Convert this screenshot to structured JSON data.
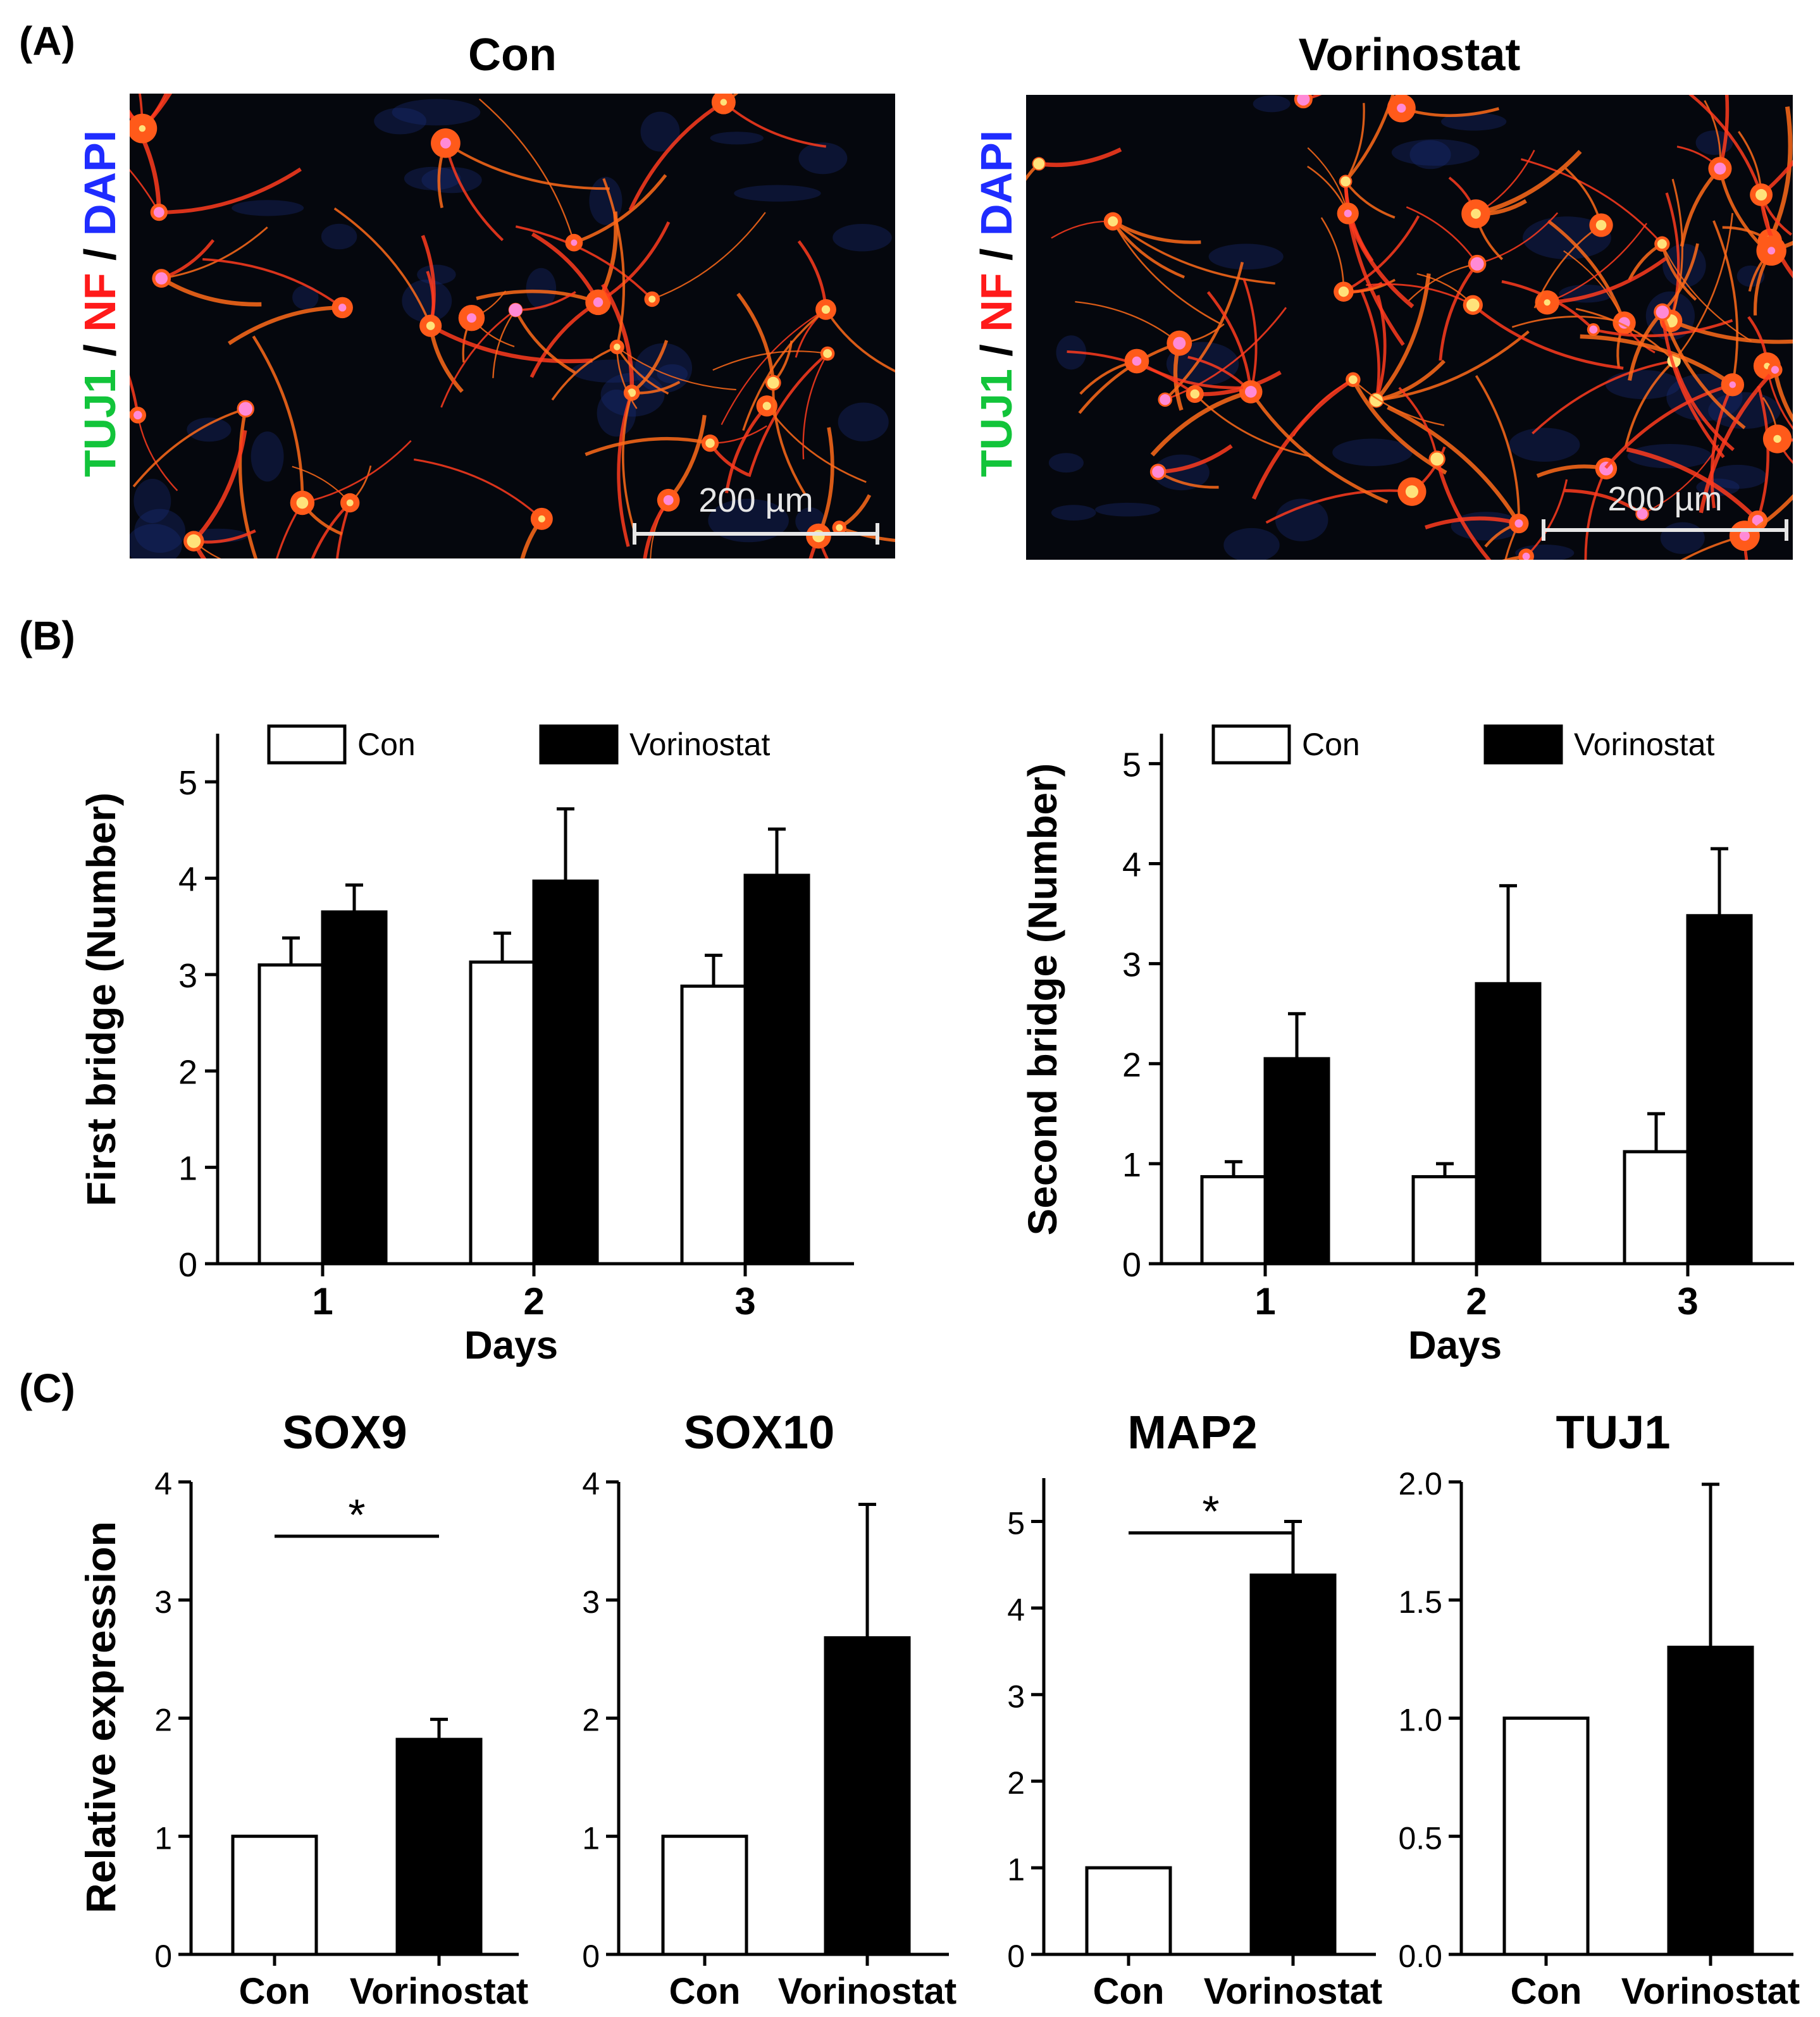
{
  "panels": {
    "a": "(A)",
    "b": "(B)",
    "c": "(C)"
  },
  "micrographs": [
    {
      "title": "Con",
      "stain": [
        "TUJ1",
        "NF",
        "DAPI"
      ],
      "stain_sep": " / ",
      "scale_label": "200 µm"
    },
    {
      "title": "Vorinostat",
      "stain": [
        "TUJ1",
        "NF",
        "DAPI"
      ],
      "stain_sep": " / ",
      "scale_label": "200 µm"
    }
  ],
  "colors": {
    "tuj1": "#12c43a",
    "nf": "#ff1a1a",
    "dapi": "#1f2cff",
    "con_fill": "#ffffff",
    "vorinostat_fill": "#000000"
  },
  "chart_data": [
    {
      "id": "first-bridge",
      "type": "bar",
      "title": "",
      "xlabel": "Days",
      "ylabel": "First bridge (Number)",
      "categories": [
        "1",
        "2",
        "3"
      ],
      "ylim": [
        0,
        5.5
      ],
      "yticks": [
        0,
        1,
        2,
        3,
        4,
        5
      ],
      "legend_position": "top",
      "series": [
        {
          "name": "Con",
          "values": [
            3.1,
            3.13,
            2.88
          ],
          "errors": [
            0.28,
            0.3,
            0.32
          ]
        },
        {
          "name": "Vorinostat",
          "values": [
            3.65,
            3.97,
            4.03
          ],
          "errors": [
            0.28,
            0.75,
            0.48
          ]
        }
      ]
    },
    {
      "id": "second-bridge",
      "type": "bar",
      "title": "",
      "xlabel": "Days",
      "ylabel": "Second bridge (Number)",
      "categories": [
        "1",
        "2",
        "3"
      ],
      "ylim": [
        0,
        5.3
      ],
      "yticks": [
        0,
        1,
        2,
        3,
        4,
        5
      ],
      "legend_position": "top",
      "series": [
        {
          "name": "Con",
          "values": [
            0.87,
            0.87,
            1.12
          ],
          "errors": [
            0.15,
            0.13,
            0.38
          ]
        },
        {
          "name": "Vorinostat",
          "values": [
            2.05,
            2.8,
            3.48
          ],
          "errors": [
            0.45,
            0.98,
            0.67
          ]
        }
      ]
    },
    {
      "id": "sox9",
      "type": "bar",
      "title": "SOX9",
      "ylabel": "Relative expression",
      "categories": [
        "Con",
        "Vorinostat"
      ],
      "values": [
        1.0,
        1.82
      ],
      "errors": [
        0,
        0.17
      ],
      "ylim": [
        0,
        4
      ],
      "yticks": [
        "0",
        "1",
        "2",
        "3",
        "4"
      ],
      "significance": "*"
    },
    {
      "id": "sox10",
      "type": "bar",
      "title": "SOX10",
      "ylabel": "",
      "categories": [
        "Con",
        "Vorinostat"
      ],
      "values": [
        1.0,
        2.68
      ],
      "errors": [
        0,
        1.13
      ],
      "ylim": [
        0,
        4
      ],
      "yticks": [
        "0",
        "1",
        "2",
        "3",
        "4"
      ],
      "significance": ""
    },
    {
      "id": "map2",
      "type": "bar",
      "title": "MAP2",
      "ylabel": "",
      "categories": [
        "Con",
        "Vorinostat"
      ],
      "values": [
        1.0,
        4.38
      ],
      "errors": [
        0,
        0.62
      ],
      "ylim": [
        0,
        5.5
      ],
      "yticks": [
        "0",
        "1",
        "2",
        "3",
        "4",
        "5"
      ],
      "significance": "*"
    },
    {
      "id": "tuj1",
      "type": "bar",
      "title": "TUJ1",
      "ylabel": "",
      "categories": [
        "Con",
        "Vorinostat"
      ],
      "values": [
        1.0,
        1.3
      ],
      "errors": [
        0,
        0.69
      ],
      "ylim": [
        0,
        2.0
      ],
      "yticks": [
        "0.0",
        "0.5",
        "1.0",
        "1.5",
        "2.0"
      ],
      "significance": ""
    }
  ]
}
